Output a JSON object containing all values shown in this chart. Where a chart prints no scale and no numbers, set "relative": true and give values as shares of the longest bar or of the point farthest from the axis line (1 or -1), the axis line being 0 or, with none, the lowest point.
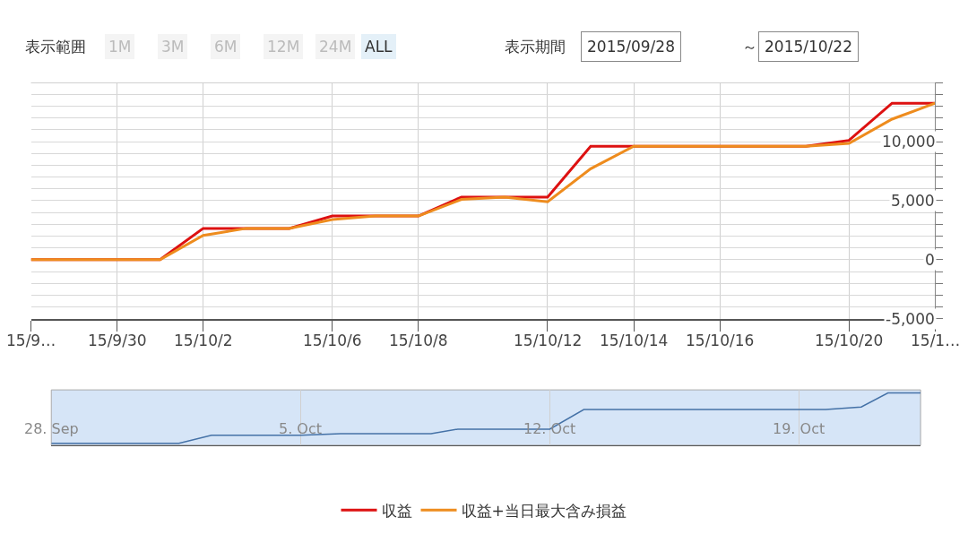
{
  "chart_data": [
    {
      "type": "line",
      "categories": [
        "15/9…",
        null,
        "15/9/30",
        null,
        "15/10/2",
        null,
        null,
        "15/10/6",
        null,
        "15/10/8",
        null,
        null,
        "15/10/12",
        null,
        "15/10/14",
        null,
        "15/10/16",
        null,
        null,
        "15/10/20",
        null,
        "15/1…"
      ],
      "series": [
        {
          "name": "収益",
          "color": "#dd1111",
          "values": [
            0,
            0,
            0,
            0,
            2650,
            2650,
            2650,
            3700,
            3700,
            3700,
            5300,
            5300,
            5300,
            9600,
            9600,
            9600,
            9600,
            9600,
            9600,
            10100,
            13250,
            13250
          ]
        },
        {
          "name": "収益+当日最大含み損益",
          "color": "#ee8c1e",
          "values": [
            0,
            0,
            0,
            0,
            2050,
            2650,
            2650,
            3400,
            3700,
            3700,
            5100,
            5300,
            4900,
            7700,
            9600,
            9600,
            9600,
            9600,
            9600,
            9850,
            11900,
            13250
          ]
        }
      ],
      "ylim": [
        -5000,
        15000
      ],
      "yticks": [
        {
          "value": -5000,
          "label": "-5,000"
        },
        {
          "value": -4000,
          "label": null
        },
        {
          "value": -3000,
          "label": null
        },
        {
          "value": -2000,
          "label": null
        },
        {
          "value": -1000,
          "label": null
        },
        0,
        {
          "value": 1000,
          "label": null
        },
        {
          "value": 2000,
          "label": null
        },
        {
          "value": 3000,
          "label": null
        },
        {
          "value": 4000,
          "label": null
        },
        {
          "value": 5000,
          "label": "5,000"
        },
        {
          "value": 6000,
          "label": null
        },
        {
          "value": 7000,
          "label": null
        },
        {
          "value": 8000,
          "label": null
        },
        {
          "value": 9000,
          "label": null
        },
        {
          "value": 10000,
          "label": "10,000"
        },
        {
          "value": 11000,
          "label": null
        },
        {
          "value": 12000,
          "label": null
        },
        {
          "value": 13000,
          "label": null
        },
        {
          "value": 14000,
          "label": null
        },
        {
          "value": 15000,
          "label": null
        }
      ],
      "grid": true,
      "legend": "bottom",
      "marker": "none",
      "line_style": "solid",
      "annotations": [
        "表示範囲",
        "1M",
        "3M",
        "6M",
        "12M",
        "24M",
        "ALL",
        "表示期間",
        "2015/09/28",
        "～",
        "2015/10/22"
      ]
    },
    {
      "type": "line",
      "relative": true,
      "tick_labels": "x",
      "series": [
        {
          "color": "#4572a7",
          "x": [
            "2015-09-28",
            "2015-10-01T14:00",
            "2015-10-02T12:00",
            "2015-10-05",
            "2015-10-06T03:00",
            "2015-10-08T16:00",
            "2015-10-09T10:00",
            "2015-10-12",
            "2015-10-12T23:00",
            "2015-10-19T18:00",
            "2015-10-20T18:00",
            "2015-10-21T12:00",
            "2015-10-22T10:00"
          ],
          "values": [
            0,
            0,
            0.16,
            0.16,
            0.19,
            0.19,
            0.28,
            0.28,
            0.67,
            0.67,
            0.72,
            1,
            1
          ]
        }
      ],
      "xlim": [
        "2015-09-28",
        "2015-10-22T10:00"
      ],
      "xticks": [
        {
          "value": "2015-09-28",
          "label": "28. Sep"
        },
        {
          "value": "2015-10-05",
          "label": "5. Oct"
        },
        {
          "value": "2015-10-12",
          "label": "12. Oct"
        },
        {
          "value": "2015-10-19",
          "label": "19. Oct"
        }
      ],
      "grid": "x",
      "marker": "none",
      "line_style": "solid",
      "legend": false
    }
  ]
}
